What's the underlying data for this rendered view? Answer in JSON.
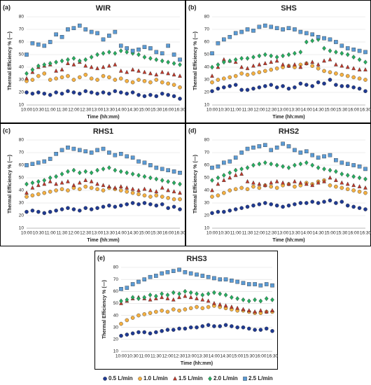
{
  "chart_data": [
    {
      "type": "scatter",
      "label": "(a)",
      "title": "WIR",
      "xlabel": "Time (hh:mm)",
      "ylabel": "Thermal Efficiency % (—)",
      "categories": [
        "10:00",
        null,
        "10:30",
        null,
        "11:00",
        null,
        "11:30",
        null,
        "12:00",
        null,
        "12:30",
        null,
        "13:00",
        null,
        "13:30",
        null,
        "14:00",
        null,
        "14:30",
        null,
        "15:00",
        null,
        "15:30",
        null,
        "16:00",
        null,
        "16:30"
      ],
      "ylim": [
        10,
        80
      ],
      "yticks": [
        10,
        20,
        30,
        40,
        50,
        60,
        70,
        80
      ],
      "grid": true,
      "series": [
        {
          "color": "#1f3a93",
          "marker": "circle",
          "values": [
            20,
            19,
            20,
            19,
            18,
            20,
            19,
            21,
            20,
            19,
            21,
            20,
            19,
            20,
            19,
            21,
            20,
            19,
            20,
            18,
            17,
            18,
            17,
            19,
            18,
            17,
            15
          ]
        },
        {
          "color": "#f5b041",
          "marker": "circle",
          "values": [
            29,
            30,
            33,
            35,
            30,
            31,
            32,
            33,
            30,
            32,
            34,
            31,
            30,
            33,
            32,
            30,
            31,
            29,
            28,
            30,
            29,
            28,
            30,
            28,
            27,
            26,
            24
          ]
        },
        {
          "color": "#c0392b",
          "marker": "triangle",
          "values": [
            31,
            36,
            40,
            41,
            42,
            37,
            38,
            43,
            42,
            44,
            41,
            40,
            39,
            40,
            41,
            42,
            37,
            36,
            38,
            37,
            36,
            35,
            34,
            36,
            35,
            34,
            33
          ]
        },
        {
          "color": "#27ae60",
          "marker": "diamond",
          "values": [
            35,
            38,
            41,
            42,
            43,
            44,
            45,
            46,
            47,
            45,
            46,
            48,
            50,
            51,
            52,
            51,
            53,
            52,
            51,
            50,
            48,
            47,
            46,
            45,
            44,
            43,
            42
          ]
        },
        {
          "color": "#5b9bd5",
          "marker": "square",
          "values": [
            50,
            59,
            58,
            57,
            60,
            66,
            64,
            70,
            71,
            73,
            70,
            68,
            67,
            62,
            65,
            68,
            57,
            55,
            53,
            54,
            56,
            55,
            52,
            51,
            57,
            50,
            46
          ]
        }
      ]
    },
    {
      "type": "scatter",
      "label": "(b)",
      "title": "SHS",
      "xlabel": "Time (hh:mm)",
      "ylabel": "Thermal Efficiency % (—)",
      "categories": [
        "10:00",
        null,
        "10:30",
        null,
        "11:00",
        null,
        "11:30",
        null,
        "12:00",
        null,
        "12:30",
        null,
        "13:00",
        null,
        "13:30",
        null,
        "14:00",
        null,
        "14:30",
        null,
        "15:00",
        null,
        "15:30",
        null,
        "16:00",
        null,
        "16:30"
      ],
      "ylim": [
        10,
        80
      ],
      "yticks": [
        10,
        20,
        30,
        40,
        50,
        60,
        70,
        80
      ],
      "grid": true,
      "series": [
        {
          "color": "#1f3a93",
          "marker": "circle",
          "values": [
            21,
            23,
            24,
            25,
            26,
            22,
            22,
            23,
            24,
            25,
            26,
            24,
            25,
            23,
            24,
            27,
            26,
            25,
            28,
            27,
            30,
            26,
            25,
            25,
            24,
            23,
            21
          ]
        },
        {
          "color": "#f5b041",
          "marker": "circle",
          "values": [
            28,
            30,
            31,
            32,
            33,
            35,
            34,
            35,
            36,
            37,
            38,
            39,
            40,
            41,
            40,
            42,
            43,
            41,
            39,
            37,
            36,
            35,
            34,
            33,
            32,
            31,
            30
          ]
        },
        {
          "color": "#c0392b",
          "marker": "triangle",
          "values": [
            33,
            40,
            46,
            45,
            44,
            40,
            39,
            41,
            42,
            43,
            44,
            45,
            42,
            41,
            42,
            40,
            43,
            44,
            42,
            45,
            46,
            42,
            41,
            40,
            39,
            38,
            38
          ]
        },
        {
          "color": "#27ae60",
          "marker": "diamond",
          "values": [
            40,
            42,
            44,
            45,
            46,
            47,
            47,
            48,
            49,
            50,
            49,
            48,
            49,
            50,
            51,
            52,
            60,
            61,
            62,
            55,
            53,
            52,
            51,
            50,
            48,
            46,
            44
          ]
        },
        {
          "color": "#5b9bd5",
          "marker": "square",
          "values": [
            51,
            59,
            62,
            64,
            67,
            68,
            70,
            69,
            72,
            73,
            72,
            71,
            70,
            71,
            70,
            68,
            67,
            66,
            64,
            63,
            62,
            60,
            57,
            55,
            54,
            53,
            52
          ]
        }
      ]
    },
    {
      "type": "scatter",
      "label": "(c)",
      "title": "RHS1",
      "xlabel": "Time (hh:mm)",
      "ylabel": "Thermal Efficiency % (—)",
      "categories": [
        "10:00",
        null,
        "10:30",
        null,
        "11:00",
        null,
        "11:30",
        null,
        "12:00",
        null,
        "12:30",
        null,
        "13:00",
        null,
        "13:30",
        null,
        "14:00",
        null,
        "14:30",
        null,
        "15:00",
        null,
        "15:30",
        null,
        "16:00",
        null,
        "16:30"
      ],
      "ylim": [
        10,
        80
      ],
      "yticks": [
        10,
        20,
        30,
        40,
        50,
        60,
        70,
        80
      ],
      "grid": true,
      "series": [
        {
          "color": "#1f3a93",
          "marker": "circle",
          "values": [
            23,
            24,
            23,
            22,
            23,
            24,
            25,
            26,
            25,
            24,
            26,
            25,
            26,
            27,
            28,
            27,
            28,
            29,
            30,
            29,
            30,
            29,
            28,
            29,
            26,
            27,
            25
          ]
        },
        {
          "color": "#f5b041",
          "marker": "circle",
          "values": [
            35,
            36,
            37,
            38,
            39,
            40,
            41,
            40,
            42,
            41,
            43,
            42,
            41,
            40,
            42,
            41,
            40,
            39,
            38,
            37,
            36,
            35,
            36,
            35,
            34,
            33,
            33
          ]
        },
        {
          "color": "#c0392b",
          "marker": "triangle",
          "values": [
            38,
            42,
            44,
            45,
            47,
            45,
            46,
            47,
            44,
            46,
            48,
            47,
            45,
            44,
            43,
            42,
            43,
            42,
            41,
            40,
            41,
            40,
            39,
            42,
            40,
            39,
            38
          ]
        },
        {
          "color": "#27ae60",
          "marker": "diamond",
          "values": [
            45,
            46,
            47,
            48,
            50,
            51,
            53,
            55,
            56,
            54,
            55,
            54,
            56,
            57,
            58,
            56,
            55,
            54,
            53,
            52,
            51,
            50,
            49,
            48,
            47,
            46,
            45
          ]
        },
        {
          "color": "#5b9bd5",
          "marker": "square",
          "values": [
            60,
            61,
            62,
            63,
            65,
            69,
            72,
            74,
            73,
            72,
            71,
            70,
            72,
            73,
            70,
            68,
            69,
            67,
            66,
            63,
            62,
            60,
            58,
            57,
            56,
            55,
            54
          ]
        }
      ]
    },
    {
      "type": "scatter",
      "label": "(d)",
      "title": "RHS2",
      "xlabel": "Time (hh:mm)",
      "ylabel": "Thermal Efficiency % (—)",
      "categories": [
        "10:00",
        null,
        "10:30",
        null,
        "11:00",
        null,
        "11:30",
        null,
        "12:00",
        null,
        "12:30",
        null,
        "13:00",
        null,
        "13:30",
        null,
        "14:00",
        null,
        "14:30",
        null,
        "15:00",
        null,
        "15:30",
        null,
        "16:00",
        null,
        "16:30"
      ],
      "ylim": [
        10,
        80
      ],
      "yticks": [
        10,
        20,
        30,
        40,
        50,
        60,
        70,
        80
      ],
      "grid": true,
      "series": [
        {
          "color": "#1f3a93",
          "marker": "circle",
          "values": [
            22,
            23,
            23,
            24,
            25,
            26,
            27,
            28,
            29,
            30,
            29,
            28,
            27,
            28,
            29,
            30,
            30,
            31,
            30,
            31,
            32,
            30,
            31,
            28,
            27,
            26,
            25
          ]
        },
        {
          "color": "#f5b041",
          "marker": "circle",
          "values": [
            35,
            36,
            38,
            40,
            41,
            42,
            41,
            43,
            42,
            44,
            43,
            42,
            44,
            45,
            43,
            44,
            46,
            45,
            47,
            48,
            44,
            43,
            42,
            41,
            40,
            39,
            38
          ]
        },
        {
          "color": "#c0392b",
          "marker": "triangle",
          "values": [
            40,
            45,
            48,
            50,
            52,
            53,
            47,
            46,
            45,
            44,
            46,
            47,
            46,
            45,
            47,
            46,
            45,
            44,
            46,
            47,
            50,
            48,
            46,
            45,
            44,
            43,
            42
          ]
        },
        {
          "color": "#27ae60",
          "marker": "diamond",
          "values": [
            48,
            50,
            52,
            54,
            56,
            57,
            58,
            60,
            61,
            62,
            61,
            60,
            59,
            58,
            60,
            61,
            62,
            60,
            58,
            57,
            56,
            55,
            53,
            52,
            51,
            50,
            49
          ]
        },
        {
          "color": "#5b9bd5",
          "marker": "square",
          "values": [
            58,
            59,
            62,
            63,
            66,
            70,
            73,
            74,
            75,
            76,
            72,
            74,
            77,
            75,
            72,
            70,
            71,
            68,
            66,
            67,
            68,
            64,
            62,
            61,
            60,
            59,
            57
          ]
        }
      ]
    },
    {
      "type": "scatter",
      "label": "(e)",
      "title": "RHS3",
      "xlabel": "Time (hh:mm)",
      "ylabel": "Thermal Efficiency % (—)",
      "categories": [
        "10:00",
        null,
        "10:30",
        null,
        "11:00",
        null,
        "11:30",
        null,
        "12:00",
        null,
        "12:30",
        null,
        "13:00",
        null,
        "13:30",
        null,
        "14:00",
        null,
        "14:30",
        null,
        "15:00",
        null,
        "15:30",
        null,
        "16:00",
        null,
        "16:30"
      ],
      "ylim": [
        10,
        80
      ],
      "yticks": [
        10,
        20,
        30,
        40,
        50,
        60,
        70,
        80
      ],
      "grid": true,
      "series": [
        {
          "name": "0.5 L/min",
          "color": "#1f3a93",
          "marker": "circle",
          "values": [
            23,
            24,
            25,
            26,
            26,
            25,
            26,
            27,
            28,
            28,
            29,
            29,
            30,
            30,
            31,
            32,
            31,
            31,
            32,
            31,
            30,
            30,
            29,
            28,
            28,
            29,
            27
          ]
        },
        {
          "name": "1.0 L/min",
          "color": "#f5b041",
          "marker": "circle",
          "values": [
            33,
            36,
            38,
            40,
            41,
            42,
            43,
            44,
            43,
            45,
            44,
            45,
            46,
            47,
            46,
            47,
            48,
            47,
            46,
            45,
            44,
            44,
            43,
            42,
            42,
            43,
            43
          ]
        },
        {
          "name": "1.5 L/min",
          "color": "#c0392b",
          "marker": "triangle",
          "values": [
            50,
            52,
            54,
            55,
            54,
            53,
            54,
            55,
            54,
            53,
            55,
            56,
            55,
            54,
            53,
            52,
            50,
            49,
            48,
            47,
            46,
            45,
            44,
            43,
            44,
            43,
            44
          ]
        },
        {
          "name": "2.0 L/min",
          "color": "#27ae60",
          "marker": "diamond",
          "values": [
            52,
            53,
            55,
            54,
            55,
            57,
            56,
            58,
            57,
            59,
            58,
            60,
            59,
            58,
            57,
            58,
            59,
            58,
            57,
            55,
            54,
            53,
            52,
            53,
            52,
            54,
            53
          ]
        },
        {
          "name": "2.5 L/min",
          "color": "#5b9bd5",
          "marker": "square",
          "values": [
            62,
            63,
            66,
            68,
            70,
            72,
            73,
            75,
            76,
            77,
            78,
            76,
            75,
            74,
            73,
            72,
            71,
            70,
            70,
            69,
            68,
            67,
            66,
            66,
            65,
            66,
            65
          ]
        }
      ]
    }
  ]
}
